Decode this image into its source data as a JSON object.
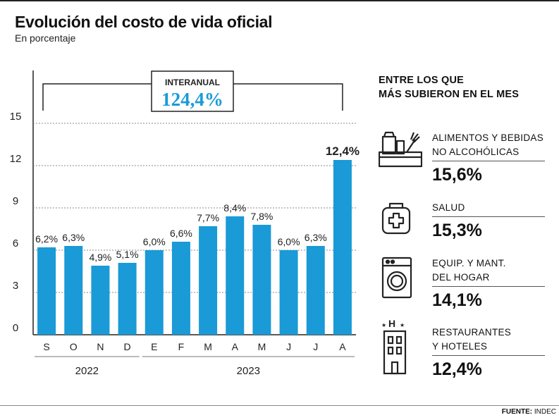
{
  "header": {
    "title": "Evolución del costo de vida oficial",
    "subtitle": "En porcentaje"
  },
  "chart_data": {
    "type": "bar",
    "title": "Evolución del costo de vida oficial",
    "ylabel": "En porcentaje",
    "categories": [
      "S",
      "O",
      "N",
      "D",
      "E",
      "F",
      "M",
      "A",
      "M",
      "J",
      "J",
      "A"
    ],
    "values": [
      6.2,
      6.3,
      4.9,
      5.1,
      6.0,
      6.6,
      7.7,
      8.4,
      7.8,
      6.0,
      6.3,
      12.4
    ],
    "value_labels": [
      "6,2%",
      "6,3%",
      "4,9%",
      "5,1%",
      "6,0%",
      "6,6%",
      "7,7%",
      "8,4%",
      "7,8%",
      "6,0%",
      "6,3%",
      "12,4%"
    ],
    "yticks": [
      0,
      3,
      6,
      9,
      12,
      15
    ],
    "ylim": [
      0,
      17.5
    ],
    "grid": true,
    "years": [
      {
        "label": "2022",
        "from": 0,
        "to": 3
      },
      {
        "label": "2023",
        "from": 4,
        "to": 11
      }
    ],
    "annotation": {
      "label": "INTERANUAL",
      "value": "124,4%"
    },
    "bar_color": "#1a9ad6",
    "highlight_index": 11
  },
  "sidebar": {
    "title_line1": "ENTRE LOS QUE",
    "title_line2": "MÁS SUBIERON EN EL MES",
    "categories": [
      {
        "line1": "ALIMENTOS Y BEBIDAS",
        "line2": "NO ALCOHÓLICAS",
        "value": "15,6%",
        "icon": "food-basket-icon"
      },
      {
        "line1": "SALUD",
        "line2": "",
        "value": "15,3%",
        "icon": "medical-kit-icon"
      },
      {
        "line1": "EQUIP. Y MANT.",
        "line2": "DEL HOGAR",
        "value": "14,1%",
        "icon": "washing-machine-icon"
      },
      {
        "line1": "RESTAURANTES",
        "line2": "Y HOTELES",
        "value": "12,4%",
        "icon": "hotel-icon"
      }
    ]
  },
  "footer": {
    "source_label": "FUENTE:",
    "source_value": "INDEC"
  },
  "colors": {
    "accent": "#1a9ad6",
    "text": "#111111"
  }
}
